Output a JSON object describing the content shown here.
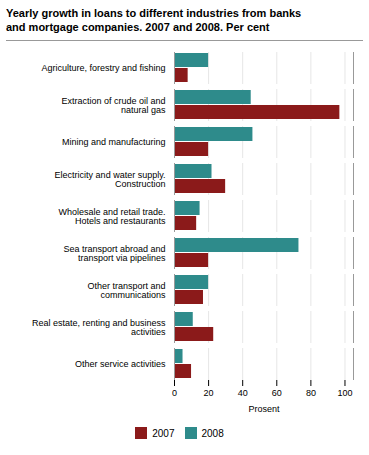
{
  "chart_data": {
    "type": "bar",
    "orientation": "horizontal",
    "title": "Yearly growth in loans to different industries from banks\nand mortgage companies. 2007 and 2008. Per cent",
    "categories": [
      "Agriculture, forestry and fishing",
      "Extraction of crude oil and\nnatural gas",
      "Mining and manufacturing",
      "Electricity and water supply.\nConstruction",
      "Wholesale and retail trade.\nHotels and restaurants",
      "Sea transport abroad and\ntransport via pipelines",
      "Other transport and\ncommunications",
      "Real estate, renting and business\nactivities",
      "Other service activities"
    ],
    "series": [
      {
        "name": "2007",
        "color": "#8B1A1A",
        "values": [
          8,
          97,
          20,
          30,
          13,
          20,
          17,
          23,
          10
        ]
      },
      {
        "name": "2008",
        "color": "#2E8B8B",
        "values": [
          20,
          45,
          46,
          22,
          15,
          73,
          20,
          11,
          5
        ]
      }
    ],
    "xlabel": "Prosent",
    "xlim": [
      0,
      105
    ],
    "xticks": [
      0,
      20,
      40,
      60,
      80,
      100
    ],
    "grid": true,
    "legend": "bottom"
  }
}
